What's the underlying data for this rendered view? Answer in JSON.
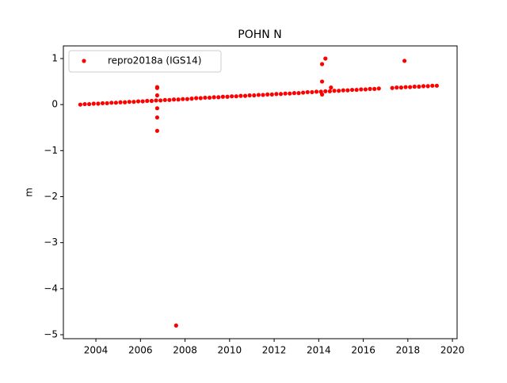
{
  "chart_data": {
    "type": "scatter",
    "title": "POHN N",
    "ylabel": "m",
    "legend": "upper left",
    "xlim": [
      2002.54,
      2020.21
    ],
    "ylim": [
      -5.086,
      1.275
    ],
    "xticks": [
      2004,
      2006,
      2008,
      2010,
      2012,
      2014,
      2016,
      2018,
      2020
    ],
    "yticks": [
      {
        "value": -5,
        "label": "−5"
      },
      {
        "value": -4,
        "label": "−4"
      },
      {
        "value": -3,
        "label": "−3"
      },
      {
        "value": -2,
        "label": "−2"
      },
      {
        "value": -1,
        "label": "−1"
      },
      0,
      1
    ],
    "series": [
      {
        "name": "repro2018a (IGS14)",
        "color": "#ff0000",
        "x": [
          2003.3,
          2003.5,
          2003.7,
          2003.9,
          2004.1,
          2004.3,
          2004.5,
          2004.7,
          2004.9,
          2005.1,
          2005.3,
          2005.5,
          2005.7,
          2005.9,
          2006.1,
          2006.3,
          2006.5,
          2006.7,
          2006.9,
          2007.1,
          2007.3,
          2007.5,
          2007.7,
          2007.9,
          2008.1,
          2008.3,
          2008.5,
          2008.7,
          2008.9,
          2009.1,
          2009.3,
          2009.5,
          2009.7,
          2009.9,
          2010.1,
          2010.3,
          2010.5,
          2010.7,
          2010.9,
          2011.1,
          2011.3,
          2011.5,
          2011.7,
          2011.9,
          2012.1,
          2012.3,
          2012.5,
          2012.7,
          2012.9,
          2013.1,
          2013.3,
          2013.5,
          2013.7,
          2013.9,
          2014.1,
          2014.3,
          2014.5,
          2014.7,
          2014.9,
          2015.1,
          2015.3,
          2015.5,
          2015.7,
          2015.9,
          2016.1,
          2016.3,
          2016.5,
          2016.7,
          2017.3,
          2017.5,
          2017.7,
          2017.9,
          2018.1,
          2018.3,
          2018.5,
          2018.7,
          2018.9,
          2019.1,
          2019.3,
          2006.75,
          2006.75,
          2006.75,
          2006.75,
          2006.75,
          2006.75,
          2007.6,
          2014.15,
          2014.15,
          2014.15,
          2014.3,
          2014.55,
          2017.85
        ],
        "values": [
          0,
          0.01,
          0.01,
          0.02,
          0.02,
          0.03,
          0.03,
          0.04,
          0.04,
          0.05,
          0.05,
          0.06,
          0.06,
          0.07,
          0.07,
          0.08,
          0.08,
          0.09,
          0.09,
          0.1,
          0.1,
          0.11,
          0.11,
          0.12,
          0.12,
          0.13,
          0.14,
          0.14,
          0.15,
          0.15,
          0.16,
          0.16,
          0.17,
          0.17,
          0.18,
          0.18,
          0.19,
          0.19,
          0.2,
          0.2,
          0.21,
          0.21,
          0.22,
          0.22,
          0.23,
          0.23,
          0.24,
          0.24,
          0.25,
          0.25,
          0.26,
          0.27,
          0.27,
          0.28,
          0.28,
          0.29,
          0.29,
          0.3,
          0.3,
          0.31,
          0.31,
          0.32,
          0.32,
          0.33,
          0.33,
          0.34,
          0.34,
          0.35,
          0.36,
          0.37,
          0.37,
          0.38,
          0.38,
          0.39,
          0.39,
          0.4,
          0.4,
          0.41,
          0.41,
          0.38,
          0.36,
          0.2,
          -0.08,
          -0.28,
          -0.57,
          -4.8,
          0.88,
          0.5,
          0.22,
          1.0,
          0.37,
          0.95
        ]
      }
    ]
  }
}
